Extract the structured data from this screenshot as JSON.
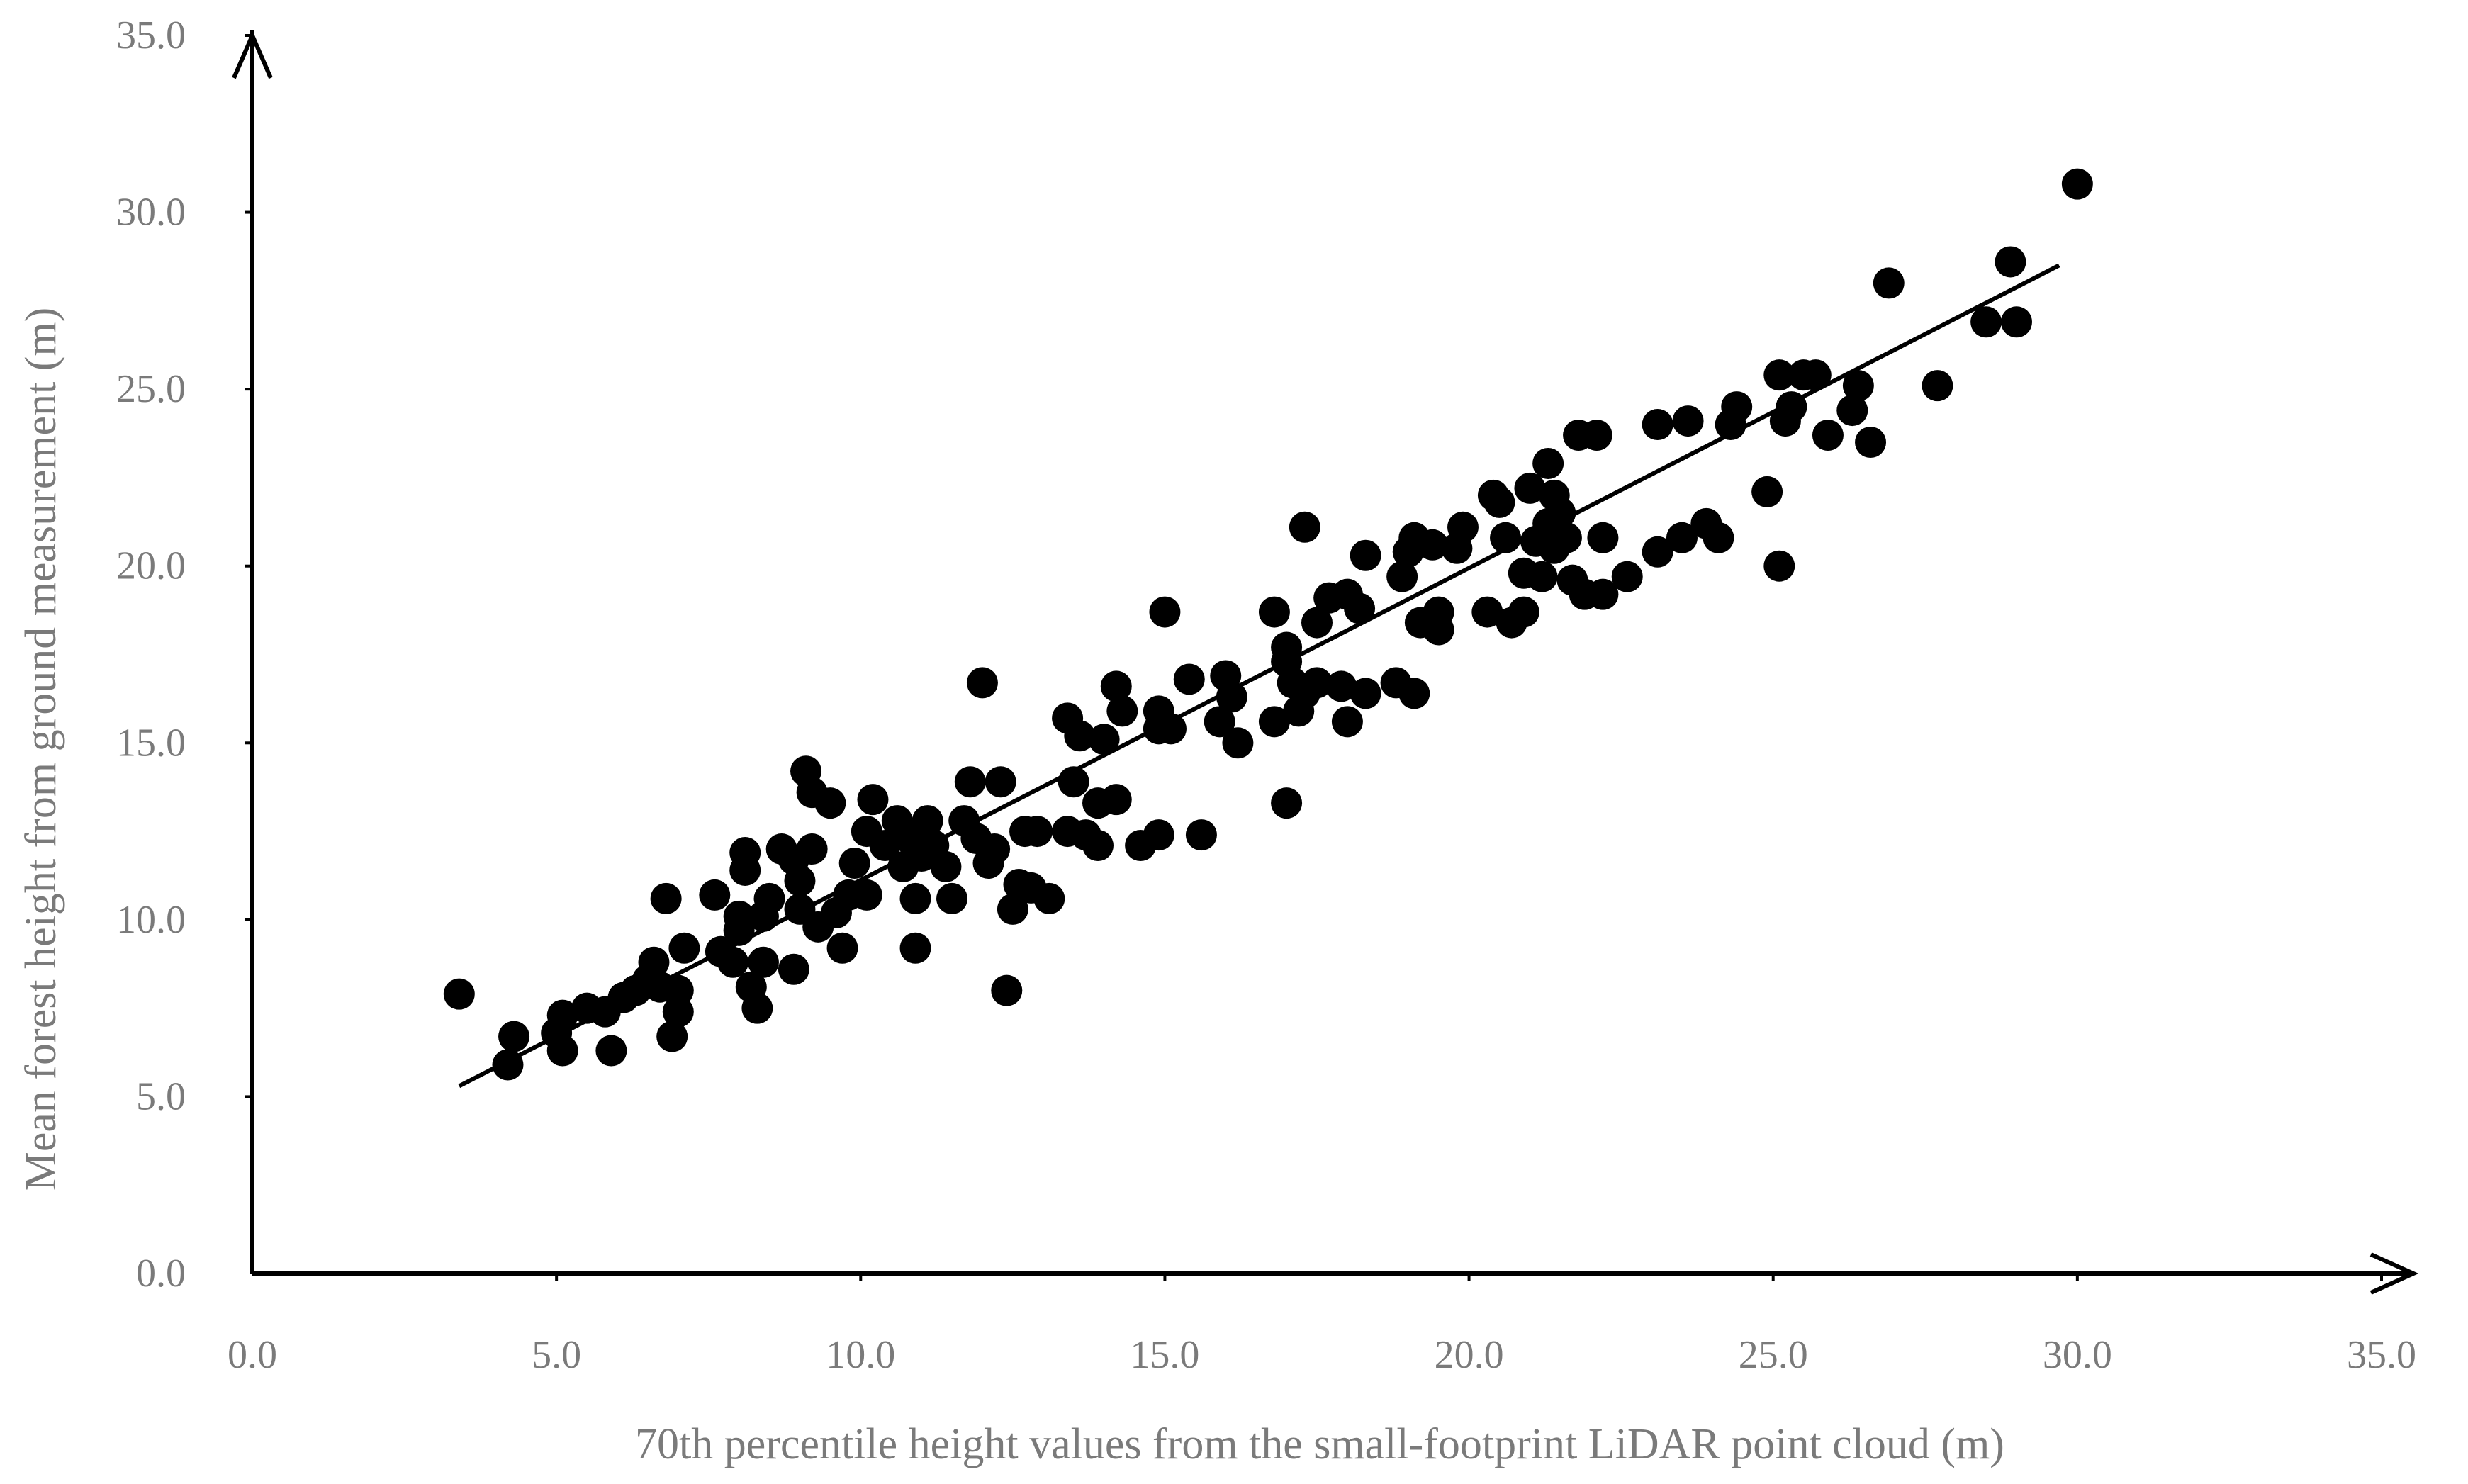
{
  "chart_data": {
    "type": "scatter",
    "title": "",
    "xlabel": "70th percentile height values from the small-footprint LiDAR point cloud (m)",
    "ylabel": "Mean  forest height from ground measurement (m)",
    "xlim": [
      0,
      35
    ],
    "ylim": [
      0,
      35
    ],
    "x_ticks": [
      "0.0",
      "5.0",
      "10.0",
      "15.0",
      "20.0",
      "25.0",
      "30.0",
      "35.0"
    ],
    "y_ticks": [
      "0.0",
      "5.0",
      "10.0",
      "15.0",
      "20.0",
      "25.0",
      "30.0",
      "35.0"
    ],
    "grid": false,
    "legend": "none",
    "marker_color": "#000000",
    "trendline": {
      "x": [
        3.4,
        29.7
      ],
      "y": [
        5.3,
        28.5
      ]
    },
    "points": [
      [
        3.4,
        7.9
      ],
      [
        4.2,
        5.9
      ],
      [
        4.3,
        6.7
      ],
      [
        5.0,
        6.8
      ],
      [
        5.1,
        7.3
      ],
      [
        5.1,
        6.3
      ],
      [
        5.5,
        7.5
      ],
      [
        5.8,
        7.4
      ],
      [
        5.9,
        6.3
      ],
      [
        6.1,
        7.8
      ],
      [
        6.3,
        8.0
      ],
      [
        6.5,
        8.3
      ],
      [
        6.6,
        8.8
      ],
      [
        6.7,
        8.1
      ],
      [
        6.8,
        10.6
      ],
      [
        6.9,
        6.7
      ],
      [
        7.0,
        7.4
      ],
      [
        7.0,
        8.0
      ],
      [
        7.1,
        9.2
      ],
      [
        7.6,
        10.7
      ],
      [
        7.7,
        9.1
      ],
      [
        7.9,
        8.8
      ],
      [
        8.0,
        9.7
      ],
      [
        8.0,
        10.1
      ],
      [
        8.1,
        11.4
      ],
      [
        8.1,
        11.9
      ],
      [
        8.2,
        8.1
      ],
      [
        8.3,
        7.5
      ],
      [
        8.4,
        8.8
      ],
      [
        8.4,
        10.1
      ],
      [
        8.5,
        10.6
      ],
      [
        8.7,
        12.0
      ],
      [
        8.9,
        11.7
      ],
      [
        8.9,
        8.6
      ],
      [
        9.0,
        11.1
      ],
      [
        9.0,
        10.3
      ],
      [
        9.1,
        14.2
      ],
      [
        9.2,
        12.0
      ],
      [
        9.2,
        13.6
      ],
      [
        9.3,
        9.8
      ],
      [
        9.5,
        13.3
      ],
      [
        9.6,
        10.2
      ],
      [
        9.7,
        9.2
      ],
      [
        9.8,
        10.7
      ],
      [
        9.9,
        11.6
      ],
      [
        10.1,
        10.7
      ],
      [
        10.1,
        12.5
      ],
      [
        10.2,
        13.4
      ],
      [
        10.4,
        12.1
      ],
      [
        10.6,
        12.8
      ],
      [
        10.7,
        11.5
      ],
      [
        10.8,
        12.3
      ],
      [
        10.9,
        10.6
      ],
      [
        10.9,
        9.2
      ],
      [
        11.0,
        11.8
      ],
      [
        11.1,
        12.8
      ],
      [
        11.2,
        12.1
      ],
      [
        11.4,
        11.5
      ],
      [
        11.5,
        10.6
      ],
      [
        11.7,
        12.8
      ],
      [
        11.8,
        13.9
      ],
      [
        11.9,
        12.3
      ],
      [
        12.0,
        16.7
      ],
      [
        12.1,
        11.6
      ],
      [
        12.2,
        12.0
      ],
      [
        12.3,
        13.9
      ],
      [
        12.4,
        8.0
      ],
      [
        12.5,
        10.3
      ],
      [
        12.6,
        11.0
      ],
      [
        12.7,
        12.5
      ],
      [
        12.8,
        10.9
      ],
      [
        12.9,
        12.5
      ],
      [
        13.1,
        10.6
      ],
      [
        13.4,
        12.5
      ],
      [
        13.4,
        15.7
      ],
      [
        13.5,
        13.9
      ],
      [
        13.6,
        15.2
      ],
      [
        13.7,
        12.4
      ],
      [
        13.9,
        13.3
      ],
      [
        13.9,
        12.1
      ],
      [
        14.0,
        15.1
      ],
      [
        14.2,
        16.6
      ],
      [
        14.2,
        13.4
      ],
      [
        14.3,
        15.9
      ],
      [
        14.6,
        12.1
      ],
      [
        14.9,
        12.4
      ],
      [
        14.9,
        15.9
      ],
      [
        14.9,
        15.4
      ],
      [
        15.0,
        18.7
      ],
      [
        15.1,
        15.4
      ],
      [
        15.4,
        16.8
      ],
      [
        15.6,
        12.4
      ],
      [
        15.9,
        15.6
      ],
      [
        16.0,
        16.9
      ],
      [
        16.1,
        16.3
      ],
      [
        16.2,
        15.0
      ],
      [
        16.8,
        15.6
      ],
      [
        16.8,
        18.7
      ],
      [
        17.0,
        17.3
      ],
      [
        17.0,
        17.7
      ],
      [
        17.0,
        13.3
      ],
      [
        17.1,
        16.7
      ],
      [
        17.2,
        15.9
      ],
      [
        17.3,
        21.1
      ],
      [
        17.3,
        16.4
      ],
      [
        17.5,
        16.7
      ],
      [
        17.5,
        18.4
      ],
      [
        17.7,
        19.1
      ],
      [
        17.9,
        16.6
      ],
      [
        18.0,
        19.2
      ],
      [
        18.0,
        15.6
      ],
      [
        18.2,
        18.8
      ],
      [
        18.3,
        16.4
      ],
      [
        18.3,
        20.3
      ],
      [
        18.8,
        16.7
      ],
      [
        18.9,
        19.7
      ],
      [
        19.0,
        20.4
      ],
      [
        19.1,
        20.8
      ],
      [
        19.1,
        16.4
      ],
      [
        19.2,
        18.4
      ],
      [
        19.4,
        20.6
      ],
      [
        19.5,
        18.7
      ],
      [
        19.5,
        18.2
      ],
      [
        19.8,
        20.5
      ],
      [
        19.9,
        21.1
      ],
      [
        20.3,
        18.7
      ],
      [
        20.4,
        22.0
      ],
      [
        20.5,
        21.8
      ],
      [
        20.6,
        20.8
      ],
      [
        20.7,
        18.4
      ],
      [
        20.9,
        18.7
      ],
      [
        20.9,
        19.8
      ],
      [
        21.0,
        22.2
      ],
      [
        21.1,
        20.7
      ],
      [
        21.2,
        19.7
      ],
      [
        21.3,
        22.9
      ],
      [
        21.3,
        21.2
      ],
      [
        21.4,
        20.5
      ],
      [
        21.4,
        22.0
      ],
      [
        21.5,
        21.5
      ],
      [
        21.6,
        20.8
      ],
      [
        21.7,
        19.6
      ],
      [
        21.8,
        23.7
      ],
      [
        21.9,
        19.2
      ],
      [
        22.1,
        23.7
      ],
      [
        22.2,
        19.2
      ],
      [
        22.2,
        20.8
      ],
      [
        22.6,
        19.7
      ],
      [
        23.1,
        20.4
      ],
      [
        23.1,
        24.0
      ],
      [
        23.5,
        20.8
      ],
      [
        23.6,
        24.1
      ],
      [
        23.9,
        21.2
      ],
      [
        24.1,
        20.8
      ],
      [
        24.3,
        24.0
      ],
      [
        24.4,
        24.5
      ],
      [
        24.9,
        22.1
      ],
      [
        25.1,
        20.0
      ],
      [
        25.1,
        25.4
      ],
      [
        25.2,
        24.1
      ],
      [
        25.3,
        24.5
      ],
      [
        25.5,
        25.4
      ],
      [
        25.7,
        25.4
      ],
      [
        25.9,
        23.7
      ],
      [
        26.3,
        24.4
      ],
      [
        26.4,
        25.1
      ],
      [
        26.6,
        23.5
      ],
      [
        26.9,
        28.0
      ],
      [
        27.7,
        25.1
      ],
      [
        28.5,
        26.9
      ],
      [
        28.9,
        28.6
      ],
      [
        29.0,
        26.9
      ],
      [
        30.0,
        30.8
      ]
    ]
  }
}
